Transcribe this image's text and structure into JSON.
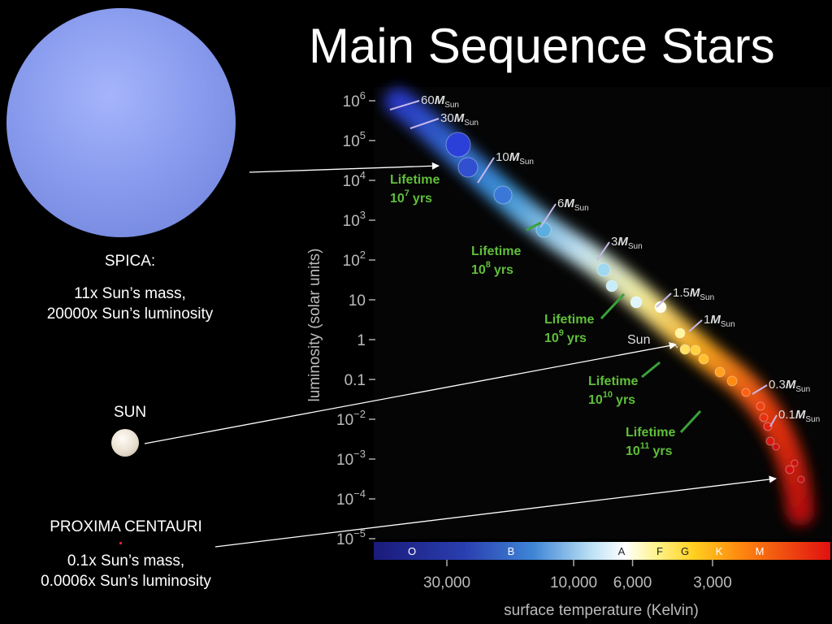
{
  "slide": {
    "title": "Main Sequence Stars",
    "spica": {
      "name": "SPICA:",
      "mass": "11x Sun’s mass,",
      "luminosity": "20000x Sun’s luminosity",
      "color": "#8a9cee"
    },
    "sun": {
      "name": "SUN",
      "color": "#e6dccd"
    },
    "proxima": {
      "name": "PROXIMA CENTAURI",
      "mass": "0.1x Sun’s mass,",
      "luminosity": "0.0006x Sun’s luminosity",
      "color": "#e02020"
    }
  },
  "chart_data": {
    "type": "scatter",
    "xlabel": "surface temperature (Kelvin)",
    "ylabel": "luminosity (solar units)",
    "x_scale": "log-reversed",
    "xlim": [
      40000,
      2500
    ],
    "ylim_log10": [
      -5,
      6
    ],
    "x_ticks": [
      {
        "label": "30,000",
        "value": 30000
      },
      {
        "label": "10,000",
        "value": 10000
      },
      {
        "label": "6,000",
        "value": 6000
      },
      {
        "label": "3,000",
        "value": 3000
      }
    ],
    "y_ticks": [
      {
        "base": "10",
        "exp": "6",
        "value": 1000000
      },
      {
        "base": "10",
        "exp": "5",
        "value": 100000
      },
      {
        "base": "10",
        "exp": "4",
        "value": 10000
      },
      {
        "base": "10",
        "exp": "3",
        "value": 1000
      },
      {
        "base": "10",
        "exp": "2",
        "value": 100
      },
      {
        "base": "10",
        "exp": "",
        "value": 10
      },
      {
        "base": "1",
        "exp": "",
        "value": 1
      },
      {
        "base": "0.1",
        "exp": "",
        "value": 0.1
      },
      {
        "base": "10",
        "exp": "−2",
        "value": 0.01
      },
      {
        "base": "10",
        "exp": "−3",
        "value": 0.001
      },
      {
        "base": "10",
        "exp": "−4",
        "value": 0.0001
      },
      {
        "base": "10",
        "exp": "−5",
        "value": 1e-05
      }
    ],
    "spectral_classes": [
      "O",
      "B",
      "A",
      "F",
      "G",
      "K",
      "M"
    ],
    "mass_labels": [
      {
        "num": "60",
        "T": 36000,
        "L": 1000000
      },
      {
        "num": "30",
        "T": 32000,
        "L": 300000
      },
      {
        "num": "10",
        "T": 25000,
        "L": 20000
      },
      {
        "num": "6",
        "T": 16000,
        "L": 2000
      },
      {
        "num": "3",
        "T": 10000,
        "L": 100
      },
      {
        "num": "1.5",
        "T": 7000,
        "L": 8
      },
      {
        "num": "1",
        "T": 5800,
        "L": 1
      },
      {
        "num": "0.3",
        "T": 3800,
        "L": 0.02
      },
      {
        "num": "0.1",
        "T": 3000,
        "L": 0.001
      }
    ],
    "mass_unit": "M",
    "mass_sub": "Sun",
    "sun_label": "Sun",
    "lifetimes": [
      {
        "word": "Lifetime",
        "base": "10",
        "exp": "7",
        "unit": "yrs"
      },
      {
        "word": "Lifetime",
        "base": "10",
        "exp": "8",
        "unit": "yrs"
      },
      {
        "word": "Lifetime",
        "base": "10",
        "exp": "9",
        "unit": "yrs"
      },
      {
        "word": "Lifetime",
        "base": "10",
        "exp": "10",
        "unit": "yrs"
      },
      {
        "word": "Lifetime",
        "base": "10",
        "exp": "11",
        "unit": "yrs"
      }
    ]
  }
}
